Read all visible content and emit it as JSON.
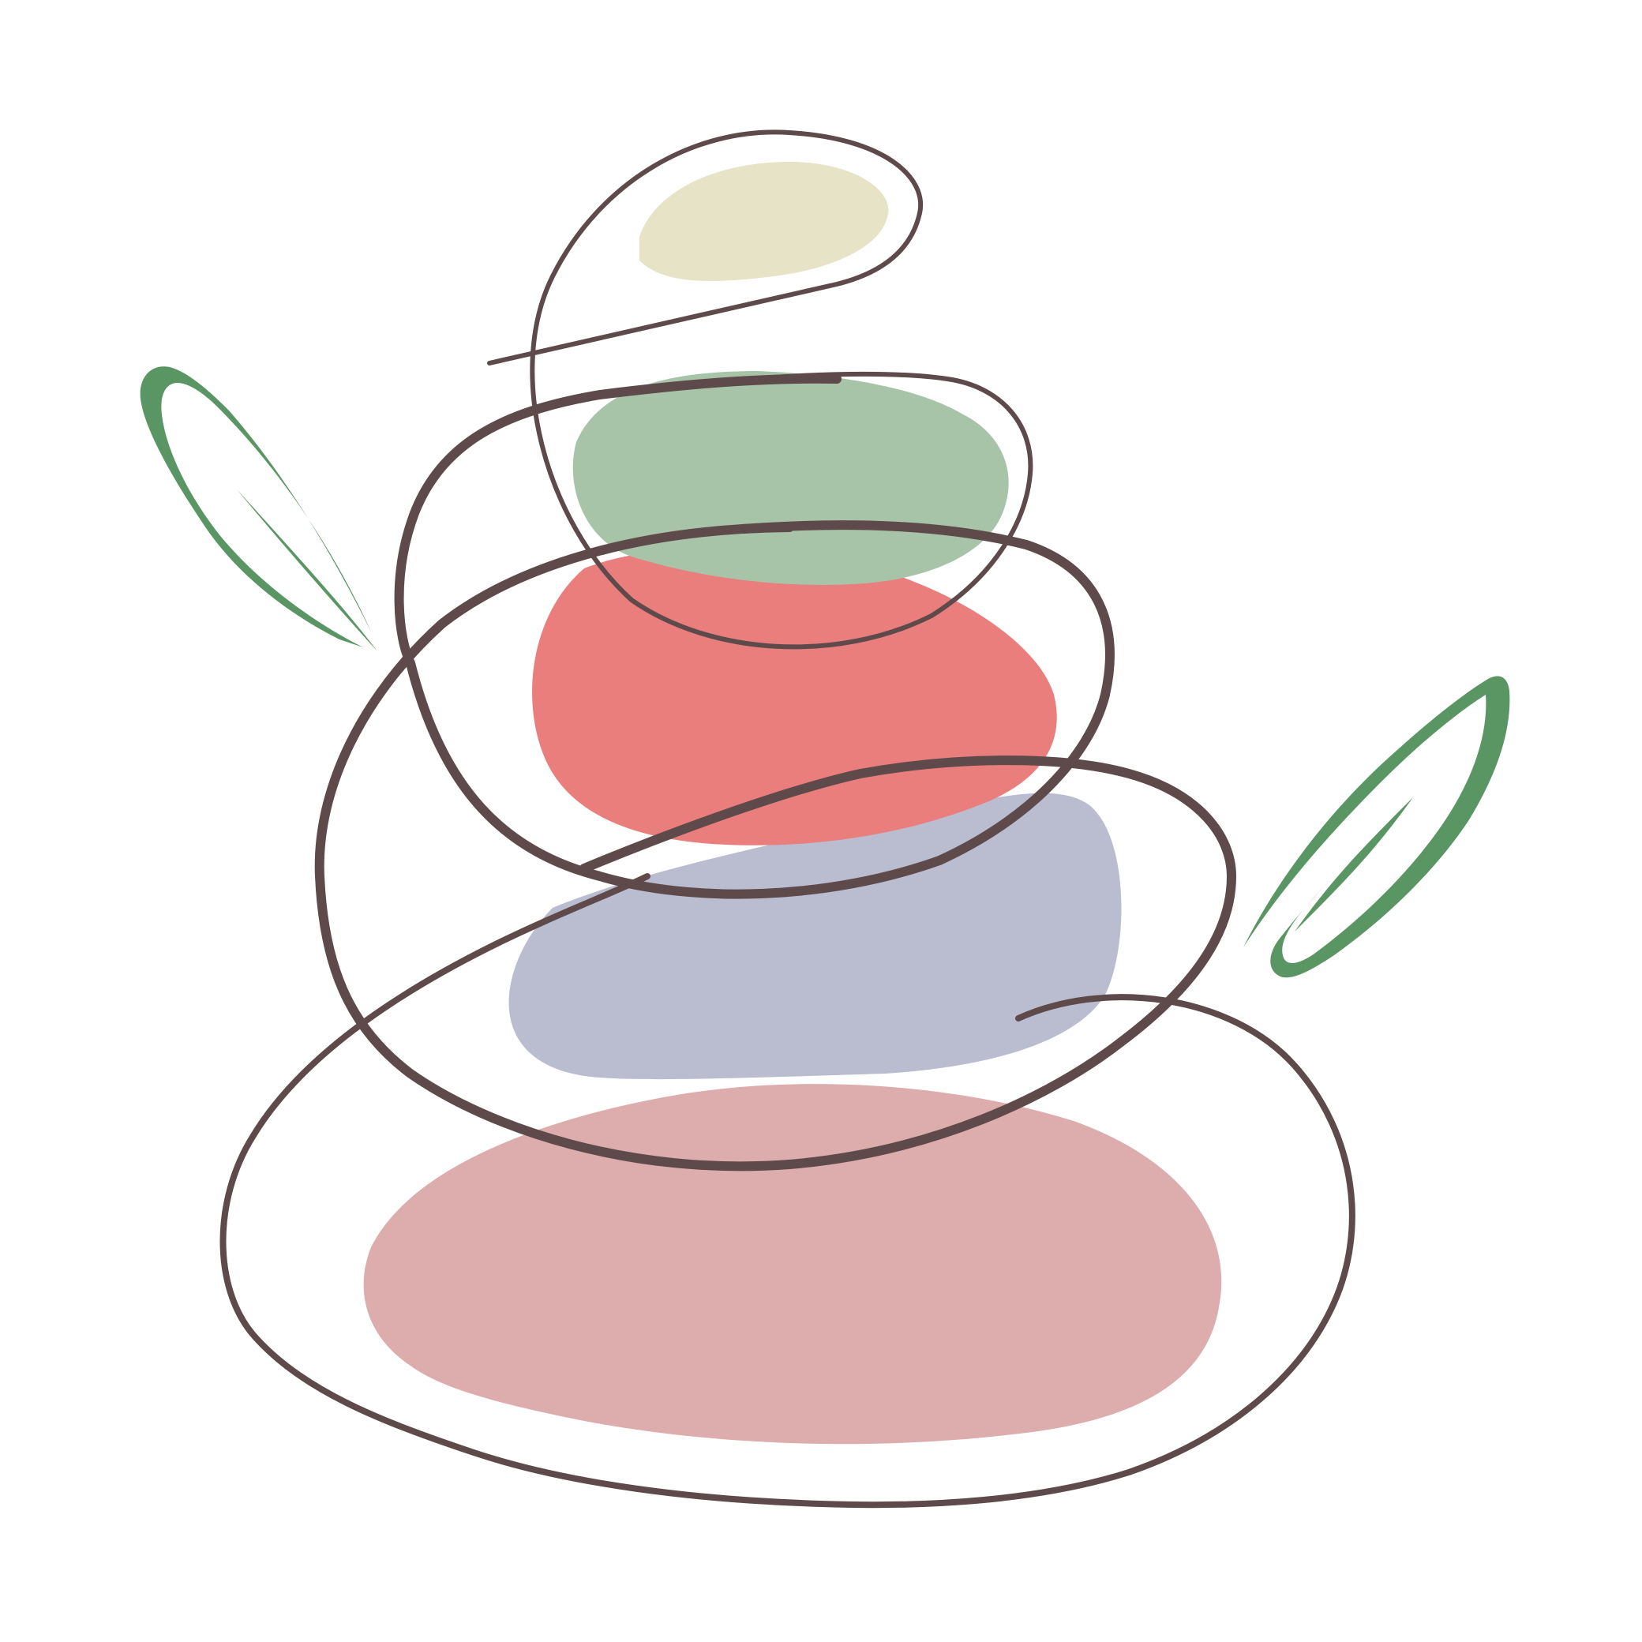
{
  "illustration": {
    "subject": "balanced-stone-cairn",
    "colors": {
      "background": "#ffffff",
      "outline": "#5f4a4b",
      "leaf": "#5a9564",
      "stone_top": "#e6e3c6",
      "stone_second": "#a7c4a9",
      "stone_third": "#e97e7d",
      "stone_fourth": "#babcd0",
      "stone_bottom": "#ddacac"
    }
  }
}
